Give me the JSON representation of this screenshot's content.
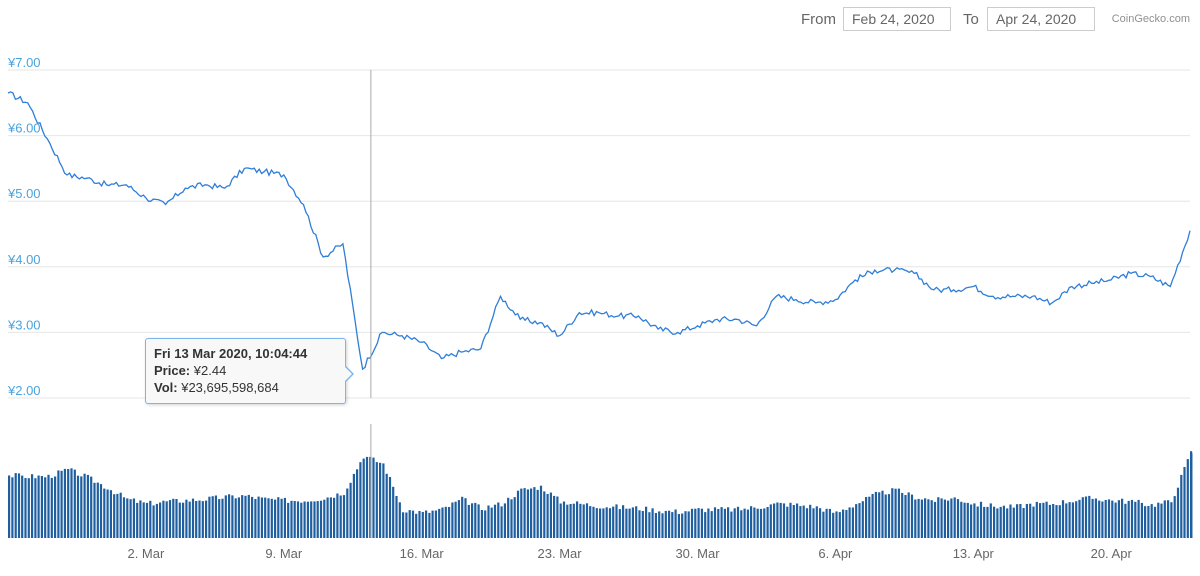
{
  "range": {
    "from_label": "From",
    "from_value": "Feb 24, 2020",
    "to_label": "To",
    "to_value": "Apr 24, 2020"
  },
  "credit": "CoinGecko.com",
  "colors": {
    "line": "#2f7ed8",
    "volume": "#1f5fa0",
    "axis_label": "#4aa3df",
    "grid": "#e6e6e6",
    "crosshair": "#aaaaaa"
  },
  "tooltip": {
    "date": "Fri 13 Mar 2020, 10:04:44",
    "price_label": "Price:",
    "price_value": "¥2.44",
    "vol_label": "Vol:",
    "vol_value": "¥23,695,598,684"
  },
  "chart_data": {
    "type": "line",
    "title": "",
    "x_range": [
      "2020-02-24",
      "2020-04-24"
    ],
    "y_ticks": [
      "¥2.00",
      "¥3.00",
      "¥4.00",
      "¥5.00",
      "¥6.00",
      "¥7.00"
    ],
    "ylim": [
      2,
      7
    ],
    "x_ticks": [
      "2. Mar",
      "9. Mar",
      "16. Mar",
      "23. Mar",
      "30. Mar",
      "6. Apr",
      "13. Apr",
      "20. Apr"
    ],
    "x_tick_dates": [
      "2020-03-02",
      "2020-03-09",
      "2020-03-16",
      "2020-03-23",
      "2020-03-30",
      "2020-04-06",
      "2020-04-13",
      "2020-04-20"
    ],
    "grid": true,
    "highlight": {
      "date": "2020-03-13T10:04:44",
      "price": 2.44,
      "volume": 23695598684
    },
    "series": [
      {
        "name": "Price",
        "x": [
          "2020-02-24",
          "2020-02-25",
          "2020-02-26",
          "2020-02-27",
          "2020-02-28",
          "2020-02-29",
          "2020-03-01",
          "2020-03-02",
          "2020-03-03",
          "2020-03-04",
          "2020-03-05",
          "2020-03-06",
          "2020-03-07",
          "2020-03-08",
          "2020-03-09",
          "2020-03-10",
          "2020-03-11",
          "2020-03-12",
          "2020-03-13",
          "2020-03-14",
          "2020-03-15",
          "2020-03-16",
          "2020-03-17",
          "2020-03-18",
          "2020-03-19",
          "2020-03-20",
          "2020-03-21",
          "2020-03-22",
          "2020-03-23",
          "2020-03-24",
          "2020-03-25",
          "2020-03-26",
          "2020-03-27",
          "2020-03-28",
          "2020-03-29",
          "2020-03-30",
          "2020-03-31",
          "2020-04-01",
          "2020-04-02",
          "2020-04-03",
          "2020-04-04",
          "2020-04-05",
          "2020-04-06",
          "2020-04-07",
          "2020-04-08",
          "2020-04-09",
          "2020-04-10",
          "2020-04-11",
          "2020-04-12",
          "2020-04-13",
          "2020-04-14",
          "2020-04-15",
          "2020-04-16",
          "2020-04-17",
          "2020-04-18",
          "2020-04-19",
          "2020-04-20",
          "2020-04-21",
          "2020-04-22",
          "2020-04-23",
          "2020-04-24"
        ],
        "values": [
          6.65,
          6.5,
          5.95,
          5.4,
          5.35,
          5.25,
          5.25,
          5.05,
          4.95,
          5.2,
          5.25,
          5.2,
          5.5,
          5.45,
          5.4,
          4.95,
          4.15,
          4.35,
          2.44,
          3.0,
          2.95,
          2.85,
          2.6,
          2.7,
          2.75,
          3.55,
          3.2,
          3.15,
          2.95,
          3.3,
          3.3,
          3.25,
          3.25,
          3.05,
          3.0,
          3.1,
          3.2,
          3.2,
          3.1,
          3.55,
          3.5,
          3.45,
          3.5,
          3.8,
          3.95,
          3.95,
          3.9,
          3.65,
          3.65,
          3.7,
          3.55,
          3.55,
          3.55,
          3.45,
          3.7,
          3.75,
          3.8,
          3.9,
          3.85,
          3.7,
          4.55
        ]
      },
      {
        "name": "Volume",
        "x": [
          "2020-02-24",
          "2020-02-25",
          "2020-02-26",
          "2020-02-27",
          "2020-02-28",
          "2020-02-29",
          "2020-03-01",
          "2020-03-02",
          "2020-03-03",
          "2020-03-04",
          "2020-03-05",
          "2020-03-06",
          "2020-03-07",
          "2020-03-08",
          "2020-03-09",
          "2020-03-10",
          "2020-03-11",
          "2020-03-12",
          "2020-03-13",
          "2020-03-14",
          "2020-03-15",
          "2020-03-16",
          "2020-03-17",
          "2020-03-18",
          "2020-03-19",
          "2020-03-20",
          "2020-03-21",
          "2020-03-22",
          "2020-03-23",
          "2020-03-24",
          "2020-03-25",
          "2020-03-26",
          "2020-03-27",
          "2020-03-28",
          "2020-03-29",
          "2020-03-30",
          "2020-03-31",
          "2020-04-01",
          "2020-04-02",
          "2020-04-03",
          "2020-04-04",
          "2020-04-05",
          "2020-04-06",
          "2020-04-07",
          "2020-04-08",
          "2020-04-09",
          "2020-04-10",
          "2020-04-11",
          "2020-04-12",
          "2020-04-13",
          "2020-04-14",
          "2020-04-15",
          "2020-04-16",
          "2020-04-17",
          "2020-04-18",
          "2020-04-19",
          "2020-04-20",
          "2020-04-21",
          "2020-04-22",
          "2020-04-23",
          "2020-04-24"
        ],
        "values": [
          0.55,
          0.54,
          0.54,
          0.6,
          0.53,
          0.44,
          0.34,
          0.3,
          0.32,
          0.33,
          0.34,
          0.36,
          0.37,
          0.34,
          0.33,
          0.33,
          0.35,
          0.4,
          0.72,
          0.65,
          0.25,
          0.22,
          0.25,
          0.34,
          0.26,
          0.3,
          0.42,
          0.45,
          0.32,
          0.3,
          0.28,
          0.27,
          0.26,
          0.24,
          0.23,
          0.25,
          0.25,
          0.25,
          0.27,
          0.3,
          0.29,
          0.27,
          0.22,
          0.3,
          0.38,
          0.42,
          0.36,
          0.33,
          0.35,
          0.3,
          0.28,
          0.27,
          0.3,
          0.3,
          0.33,
          0.35,
          0.33,
          0.32,
          0.29,
          0.32,
          0.75
        ]
      }
    ]
  }
}
